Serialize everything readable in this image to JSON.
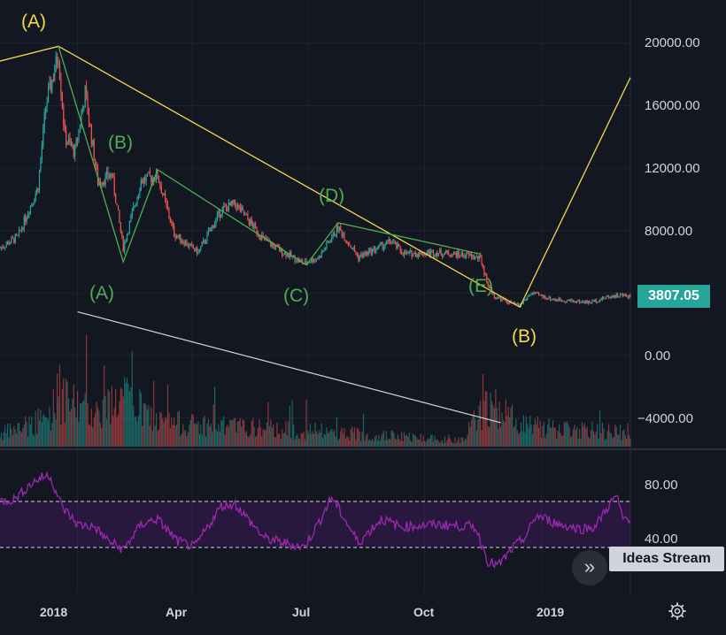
{
  "chart_data": [
    {
      "type": "candlestick",
      "series": [
        {
          "name": "",
          "x_start": "2017-11-01",
          "x_end": "2019-03-12"
        }
      ],
      "ylim": [
        -5000,
        21000
      ],
      "y_ticks": [
        "20000.00",
        "16000.00",
        "12000.00",
        "8000.00",
        "0.00",
        "−4000.00"
      ],
      "x_ticks": [
        "2018",
        "Apr",
        "Jul",
        "Oct",
        "2019"
      ],
      "current_price": "3807.05",
      "colors": {
        "up": "#26a69a",
        "down": "#ef5350",
        "wave_yellow": "#f5d84b",
        "wave_green": "#4caf50",
        "trend_white": "#d1d4dc"
      },
      "annotations": {
        "major": [
          "(A)",
          "(B)"
        ],
        "minor": [
          "(A)",
          "(B)",
          "(C)",
          "(D)",
          "(E)"
        ]
      },
      "price_points": [
        {
          "date": "2017-11-01",
          "close": 6900
        },
        {
          "date": "2017-11-15",
          "close": 7600
        },
        {
          "date": "2017-12-01",
          "close": 10800
        },
        {
          "date": "2017-12-07",
          "close": 16000
        },
        {
          "date": "2017-12-17",
          "close": 19300
        },
        {
          "date": "2017-12-22",
          "close": 14000
        },
        {
          "date": "2017-12-30",
          "close": 13000
        },
        {
          "date": "2018-01-07",
          "close": 16800
        },
        {
          "date": "2018-01-17",
          "close": 11100
        },
        {
          "date": "2018-01-28",
          "close": 11600
        },
        {
          "date": "2018-02-06",
          "close": 6900
        },
        {
          "date": "2018-02-20",
          "close": 11200
        },
        {
          "date": "2018-03-05",
          "close": 11500
        },
        {
          "date": "2018-03-18",
          "close": 7800
        },
        {
          "date": "2018-04-01",
          "close": 6900
        },
        {
          "date": "2018-04-06",
          "close": 6600
        },
        {
          "date": "2018-04-24",
          "close": 9300
        },
        {
          "date": "2018-05-05",
          "close": 9700
        },
        {
          "date": "2018-05-28",
          "close": 7400
        },
        {
          "date": "2018-06-10",
          "close": 6700
        },
        {
          "date": "2018-06-28",
          "close": 5900
        },
        {
          "date": "2018-07-10",
          "close": 6300
        },
        {
          "date": "2018-07-25",
          "close": 8200
        },
        {
          "date": "2018-08-10",
          "close": 6300
        },
        {
          "date": "2018-08-28",
          "close": 7000
        },
        {
          "date": "2018-09-05",
          "close": 7300
        },
        {
          "date": "2018-09-15",
          "close": 6500
        },
        {
          "date": "2018-10-10",
          "close": 6600
        },
        {
          "date": "2018-11-05",
          "close": 6400
        },
        {
          "date": "2018-11-14",
          "close": 6200
        },
        {
          "date": "2018-11-20",
          "close": 4500
        },
        {
          "date": "2018-11-25",
          "close": 3800
        },
        {
          "date": "2018-12-06",
          "close": 3400
        },
        {
          "date": "2018-12-15",
          "close": 3200
        },
        {
          "date": "2018-12-24",
          "close": 4000
        },
        {
          "date": "2019-01-10",
          "close": 3600
        },
        {
          "date": "2019-02-08",
          "close": 3400
        },
        {
          "date": "2019-02-24",
          "close": 3800
        },
        {
          "date": "2019-03-05",
          "close": 3850
        },
        {
          "date": "2019-03-12",
          "close": 3807
        }
      ],
      "volume_profile": [
        {
          "date": "2017-11-01",
          "level": 0.25
        },
        {
          "date": "2017-12-07",
          "level": 0.55
        },
        {
          "date": "2017-12-17",
          "level": 0.95
        },
        {
          "date": "2018-01-17",
          "level": 0.7
        },
        {
          "date": "2018-02-06",
          "level": 1.0
        },
        {
          "date": "2018-03-05",
          "level": 0.5
        },
        {
          "date": "2018-05-01",
          "level": 0.4
        },
        {
          "date": "2018-07-15",
          "level": 0.3
        },
        {
          "date": "2018-09-15",
          "level": 0.2
        },
        {
          "date": "2018-10-30",
          "level": 0.15
        },
        {
          "date": "2018-11-20",
          "level": 0.85
        },
        {
          "date": "2018-12-06",
          "level": 0.6
        },
        {
          "date": "2019-01-10",
          "level": 0.35
        },
        {
          "date": "2019-03-12",
          "level": 0.3
        }
      ],
      "elliott_waves": [
        {
          "label": "(A)",
          "color": "wave_yellow",
          "points": [
            {
              "date": "2017-10-15",
              "y": 18500
            },
            {
              "date": "2017-12-17",
              "y": 19800
            },
            {
              "date": "2018-12-15",
              "y": 3100
            },
            {
              "date": "2019-03-12",
              "y": 17800
            }
          ]
        },
        {
          "label": "(B)",
          "color": "wave_green",
          "points": [
            {
              "date": "2017-12-17",
              "y": 19800
            },
            {
              "date": "2018-02-06",
              "y": 6000
            },
            {
              "date": "2018-03-05",
              "y": 11900
            },
            {
              "date": "2018-06-30",
              "y": 5800
            },
            {
              "date": "2018-07-25",
              "y": 8500
            },
            {
              "date": "2018-11-14",
              "y": 6500
            }
          ]
        }
      ],
      "trendline": [
        {
          "date": "2018-01-01",
          "y": 2800
        },
        {
          "date": "2018-11-30",
          "y": -4300
        }
      ]
    },
    {
      "type": "line",
      "name": "",
      "x_start": "2017-11-01",
      "x_end": "2019-03-12",
      "ylim": [
        0,
        100
      ],
      "y_ticks": [
        "80.00",
        "40.00"
      ],
      "bands": [
        70,
        30
      ],
      "colors": {
        "line": "#9c27b0",
        "band_fill": "#7b1fa2",
        "band_line": "#d1d4dc"
      },
      "points": [
        {
          "date": "2017-11-01",
          "v": 70
        },
        {
          "date": "2017-11-12",
          "v": 72
        },
        {
          "date": "2017-11-25",
          "v": 85
        },
        {
          "date": "2017-12-02",
          "v": 90
        },
        {
          "date": "2017-12-10",
          "v": 93
        },
        {
          "date": "2017-12-20",
          "v": 65
        },
        {
          "date": "2018-01-01",
          "v": 50
        },
        {
          "date": "2018-01-14",
          "v": 48
        },
        {
          "date": "2018-01-25",
          "v": 36
        },
        {
          "date": "2018-02-06",
          "v": 28
        },
        {
          "date": "2018-02-20",
          "v": 50
        },
        {
          "date": "2018-03-05",
          "v": 55
        },
        {
          "date": "2018-03-20",
          "v": 36
        },
        {
          "date": "2018-04-03",
          "v": 30
        },
        {
          "date": "2018-04-24",
          "v": 66
        },
        {
          "date": "2018-05-05",
          "v": 68
        },
        {
          "date": "2018-05-28",
          "v": 38
        },
        {
          "date": "2018-06-12",
          "v": 34
        },
        {
          "date": "2018-06-28",
          "v": 30
        },
        {
          "date": "2018-07-10",
          "v": 52
        },
        {
          "date": "2018-07-20",
          "v": 74
        },
        {
          "date": "2018-08-10",
          "v": 34
        },
        {
          "date": "2018-08-28",
          "v": 55
        },
        {
          "date": "2018-09-12",
          "v": 48
        },
        {
          "date": "2018-10-10",
          "v": 50
        },
        {
          "date": "2018-11-10",
          "v": 48
        },
        {
          "date": "2018-11-20",
          "v": 18
        },
        {
          "date": "2018-11-28",
          "v": 14
        },
        {
          "date": "2018-12-10",
          "v": 30
        },
        {
          "date": "2018-12-20",
          "v": 40
        },
        {
          "date": "2018-12-28",
          "v": 58
        },
        {
          "date": "2019-01-15",
          "v": 50
        },
        {
          "date": "2019-02-01",
          "v": 46
        },
        {
          "date": "2019-02-12",
          "v": 48
        },
        {
          "date": "2019-02-24",
          "v": 68
        },
        {
          "date": "2019-03-01",
          "v": 75
        },
        {
          "date": "2019-03-06",
          "v": 55
        },
        {
          "date": "2019-03-12",
          "v": 56
        }
      ]
    }
  ],
  "ui": {
    "ideas_stream_label": "Ideas Stream",
    "ideas_toggle_glyph": "»",
    "icons": [
      "ideas-stream-toggle-icon",
      "settings-gear-icon"
    ]
  }
}
